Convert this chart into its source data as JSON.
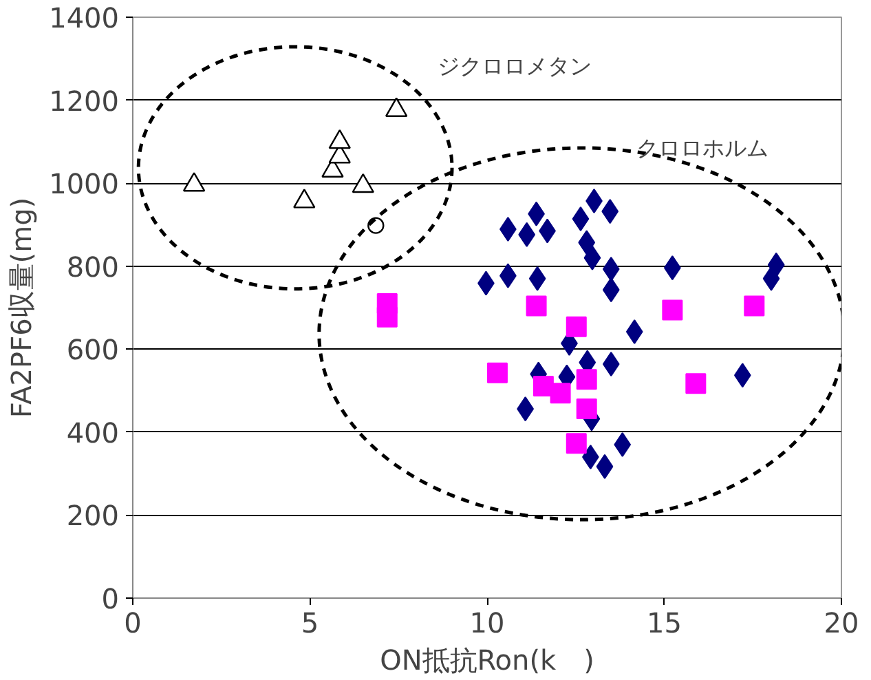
{
  "chart_data": {
    "type": "scatter",
    "xlabel": "ON抵抗Ron(k　)",
    "ylabel": "FA2PF6収量(mg)",
    "xlim": [
      0,
      20
    ],
    "ylim": [
      0,
      1400
    ],
    "xticks": [
      0,
      5,
      10,
      15,
      20
    ],
    "yticks": [
      0,
      200,
      400,
      600,
      800,
      1000,
      1200,
      1400
    ],
    "grid": "y",
    "series": [
      {
        "color": "#000000",
        "marker": "triangle",
        "x": [
          1.73,
          4.84,
          5.64,
          5.84,
          5.84,
          6.5,
          7.44
        ],
        "values": [
          996,
          956,
          1030,
          1064,
          1099,
          993,
          1176
        ]
      },
      {
        "color": "#000000",
        "marker": "circle",
        "x": [
          6.86
        ],
        "values": [
          898
        ]
      },
      {
        "color": "#000080",
        "marker": "diamond",
        "x": [
          13.02,
          13.47,
          11.39,
          12.64,
          10.59,
          11.12,
          11.7,
          12.81,
          12.97,
          13.5,
          9.97,
          10.59,
          11.42,
          13.5,
          14.16,
          12.32,
          12.83,
          13.5,
          12.25,
          11.08,
          12.95,
          13.82,
          12.92,
          13.32,
          11.45,
          15.23,
          18.16,
          18.02,
          17.21
        ],
        "values": [
          957,
          932,
          926,
          914,
          889,
          876,
          885,
          857,
          820,
          793,
          759,
          777,
          770,
          743,
          642,
          614,
          568,
          564,
          533,
          456,
          432,
          370,
          340,
          317,
          540,
          796,
          803,
          770,
          537
        ]
      },
      {
        "color": "#ff00ff",
        "marker": "square",
        "x": [
          11.39,
          12.52,
          10.29,
          11.59,
          12.07,
          12.81,
          12.81,
          12.52,
          7.18,
          7.18,
          15.23,
          17.54,
          15.89
        ],
        "values": [
          704,
          654,
          543,
          511,
          494,
          527,
          456,
          373,
          710,
          677,
          694,
          704,
          517
        ]
      }
    ],
    "annotations": [
      "ジクロロメタン",
      "クロロホルム"
    ]
  }
}
